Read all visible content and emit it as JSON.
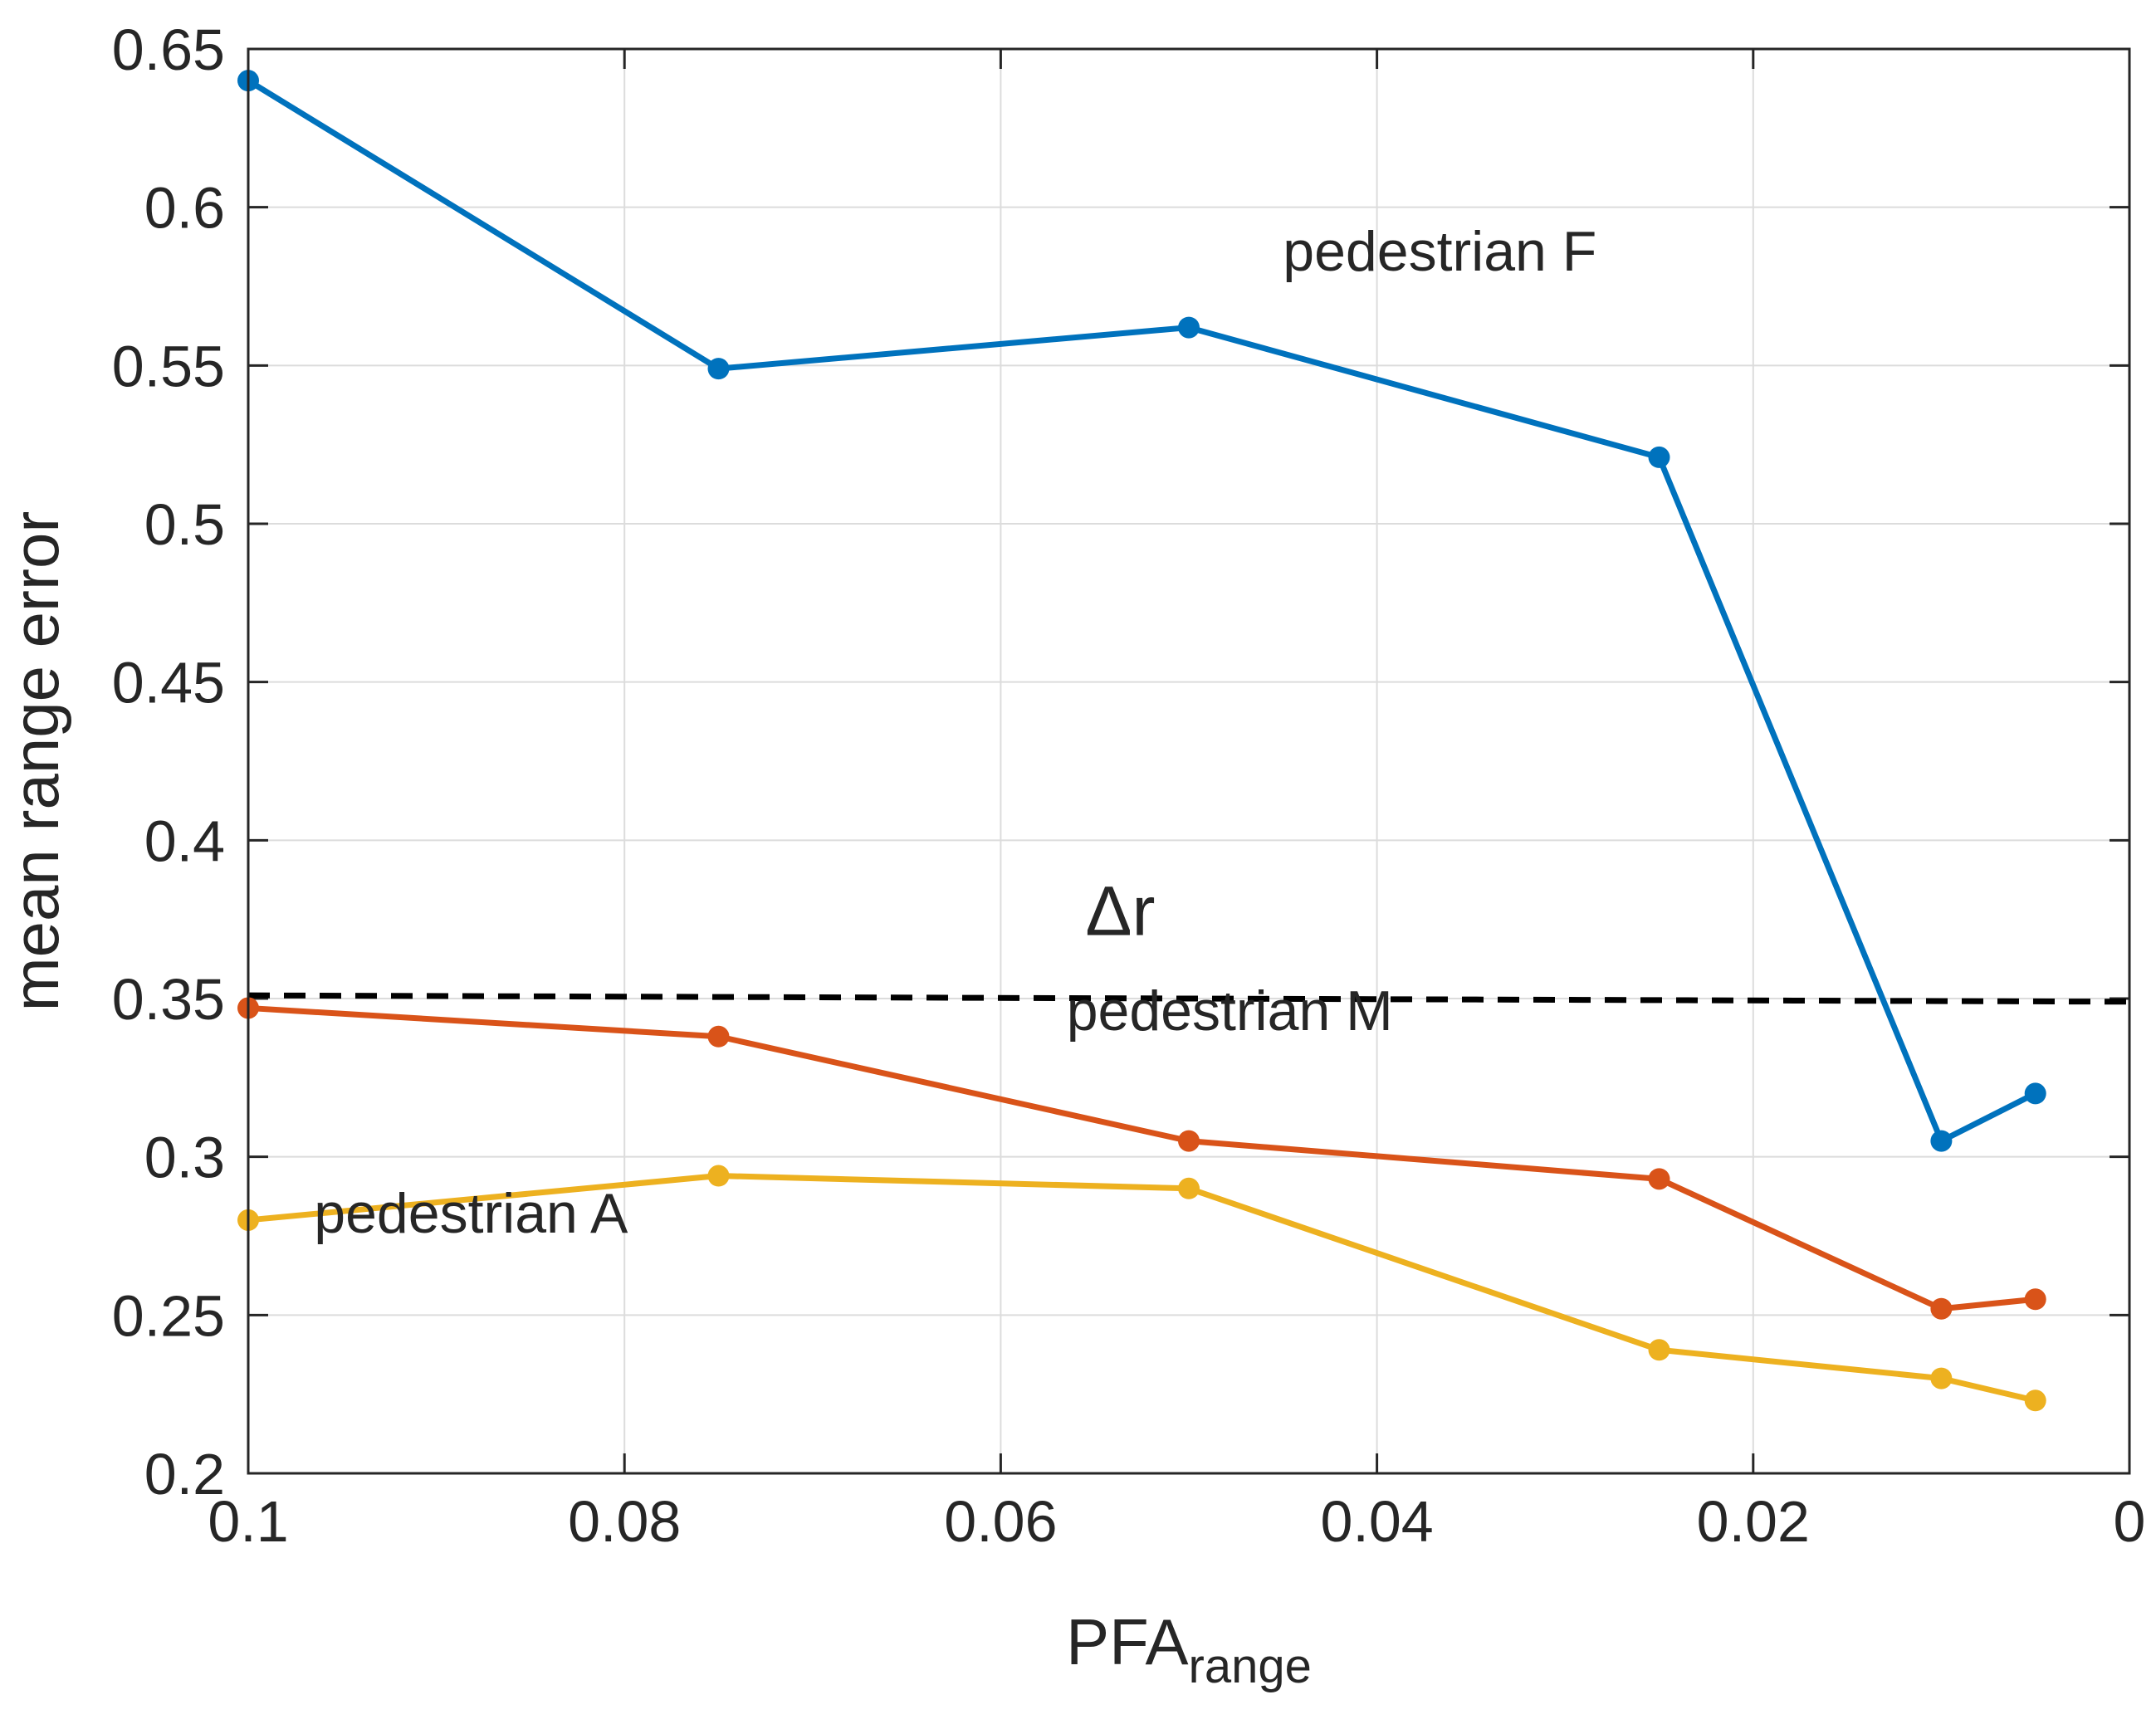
{
  "chart_data": {
    "type": "line",
    "title": "",
    "xlabel": "PFA",
    "xlabel_subscript": "range",
    "ylabel": "mean range error",
    "xlim": [
      0.1,
      0
    ],
    "ylim": [
      0.2,
      0.65
    ],
    "grid": true,
    "x_ticks": [
      0.1,
      0.08,
      0.06,
      0.04,
      0.02,
      0
    ],
    "x_tick_labels": [
      "0.1",
      "0.08",
      "0.06",
      "0.04",
      "0.02",
      "0"
    ],
    "y_ticks": [
      0.2,
      0.25,
      0.3,
      0.35,
      0.4,
      0.45,
      0.5,
      0.55,
      0.6,
      0.65
    ],
    "y_tick_labels": [
      "0.2",
      "0.25",
      "0.3",
      "0.35",
      "0.4",
      "0.45",
      "0.5",
      "0.55",
      "0.6",
      "0.65"
    ],
    "x": [
      0.1,
      0.075,
      0.05,
      0.025,
      0.01,
      0.005
    ],
    "series": [
      {
        "name": "pedestrian F",
        "color": "#0072BD",
        "values": [
          0.64,
          0.549,
          0.562,
          0.521,
          0.305,
          0.32
        ]
      },
      {
        "name": "pedestrian M",
        "color": "#D95319",
        "values": [
          0.347,
          0.338,
          0.305,
          0.293,
          0.252,
          0.255
        ]
      },
      {
        "name": "pedestrian A",
        "color": "#EDB120",
        "values": [
          0.28,
          0.294,
          0.29,
          0.239,
          0.23,
          0.223
        ]
      }
    ],
    "reference_line": {
      "label": "Δr",
      "y": [
        0.351,
        0.349
      ],
      "style": "dashed",
      "color": "#000000"
    },
    "annotations": [
      {
        "text": "pedestrian F",
        "x": 0.045,
        "y": 0.58
      },
      {
        "text": "pedestrian M",
        "x": 0.0565,
        "y": 0.34
      },
      {
        "text": "pedestrian A",
        "x": 0.0965,
        "y": 0.276
      },
      {
        "text": "Δr",
        "x": 0.0555,
        "y": 0.37
      }
    ]
  }
}
